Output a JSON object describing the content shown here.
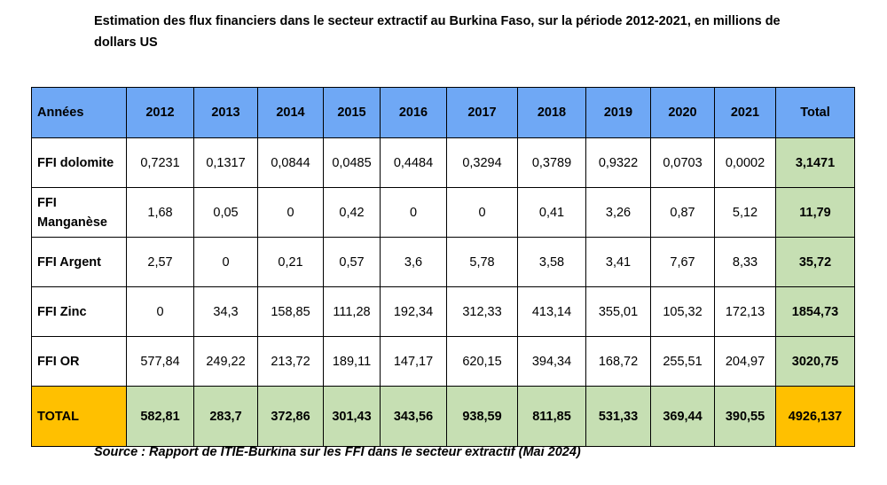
{
  "title": "Estimation des flux financiers dans le secteur extractif au Burkina Faso, sur la période 2012-2021, en millions de dollars US",
  "source": "Source : Rapport de ITIE-Burkina sur les FFI dans le secteur extractif (Mai 2024)",
  "chart_data": {
    "type": "table",
    "header": {
      "label": "Années",
      "years": [
        "2012",
        "2013",
        "2014",
        "2015",
        "2016",
        "2017",
        "2018",
        "2019",
        "2020",
        "2021"
      ],
      "total": "Total"
    },
    "rows": [
      {
        "label": "FFI dolomite",
        "values": [
          "0,7231",
          "0,1317",
          "0,0844",
          "0,0485",
          "0,4484",
          "0,3294",
          "0,3789",
          "0,9322",
          "0,0703",
          "0,0002"
        ],
        "total": "3,1471"
      },
      {
        "label": "FFI Manganèse",
        "values": [
          "1,68",
          "0,05",
          "0",
          "0,42",
          "0",
          "0",
          "0,41",
          "3,26",
          "0,87",
          "5,12"
        ],
        "total": "11,79"
      },
      {
        "label": "FFI Argent",
        "values": [
          "2,57",
          "0",
          "0,21",
          "0,57",
          "3,6",
          "5,78",
          "3,58",
          "3,41",
          "7,67",
          "8,33"
        ],
        "total": "35,72"
      },
      {
        "label": "FFI Zinc",
        "values": [
          "0",
          "34,3",
          "158,85",
          "111,28",
          "192,34",
          "312,33",
          "413,14",
          "355,01",
          "105,32",
          "172,13"
        ],
        "total": "1854,73"
      },
      {
        "label": "FFI OR",
        "values": [
          "577,84",
          "249,22",
          "213,72",
          "189,11",
          "147,17",
          "620,15",
          "394,34",
          "168,72",
          "255,51",
          "204,97"
        ],
        "total": "3020,75"
      }
    ],
    "total_row": {
      "label": "TOTAL",
      "values": [
        "582,81",
        "283,7",
        "372,86",
        "301,43",
        "343,56",
        "938,59",
        "811,85",
        "531,33",
        "369,44",
        "390,55"
      ],
      "total": "4926,137"
    },
    "colors": {
      "header": "#6fa8f5",
      "totals": "#c6dfb3",
      "grand_total": "#ffc000"
    }
  }
}
